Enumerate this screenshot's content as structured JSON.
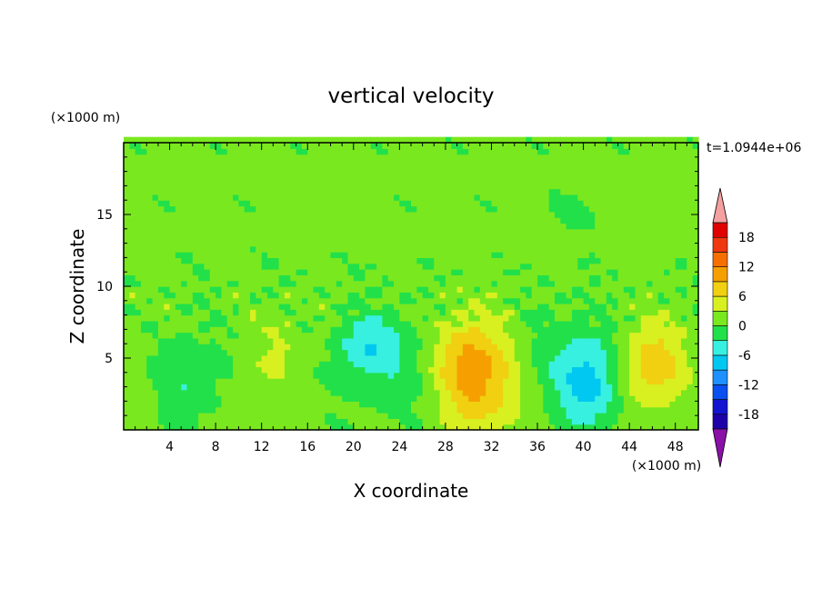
{
  "chart_data": {
    "type": "heatmap",
    "title": "vertical velocity",
    "time_label": "t=1.0944e+06",
    "xlabel": "X coordinate",
    "ylabel": "Z coordinate",
    "x_unit": "(×1000 m)",
    "y_unit": "(×1000 m)",
    "xlim": [
      0,
      50
    ],
    "ylim": [
      0,
      20
    ],
    "x_ticks": [
      4,
      8,
      12,
      16,
      20,
      24,
      28,
      32,
      36,
      40,
      44,
      48
    ],
    "y_ticks": [
      5,
      10,
      15
    ],
    "colorbar": {
      "tick_labels": [
        "18",
        "12",
        "6",
        "0",
        "-6",
        "-12",
        "-18"
      ],
      "tick_values": [
        18,
        12,
        6,
        0,
        -6,
        -12,
        -18
      ],
      "levels": [
        -21,
        -18,
        -15,
        -12,
        -9,
        -6,
        -3,
        0,
        3,
        6,
        9,
        12,
        15,
        18,
        21
      ],
      "colors": [
        "#7a1fa2",
        "#1f00a8",
        "#1414d0",
        "#0a50f0",
        "#1e90ff",
        "#00c8f0",
        "#38f0e0",
        "#22e04a",
        "#7ae81e",
        "#d8f020",
        "#f0d010",
        "#f5a000",
        "#f57000",
        "#f03810",
        "#e00000",
        "#f5a0a0"
      ],
      "over_color": "#f5a0a0",
      "under_color": "#8a10a8"
    },
    "features": [
      {
        "x": 13.5,
        "z": 5.5,
        "w": 2.5,
        "sx": 1.5,
        "sz": 1.8
      },
      {
        "x": 11.0,
        "z": 2.5,
        "w": 2.0,
        "sx": 1.0,
        "sz": 1.5
      },
      {
        "x": 5.5,
        "z": 3.5,
        "w": -3.5,
        "sx": 2.0,
        "sz": 2.0
      },
      {
        "x": 21.0,
        "z": 5.8,
        "w": -6.0,
        "sx": 2.3,
        "sz": 1.6
      },
      {
        "x": 31.0,
        "z": 3.5,
        "w": 9.0,
        "sx": 2.5,
        "sz": 2.8
      },
      {
        "x": 29.5,
        "z": 5.0,
        "w": 4.0,
        "sx": 1.8,
        "sz": 1.8
      },
      {
        "x": 40.5,
        "z": 3.5,
        "w": -8.0,
        "sx": 2.0,
        "sz": 2.3
      },
      {
        "x": 46.0,
        "z": 4.5,
        "w": 7.5,
        "sx": 2.0,
        "sz": 2.0
      },
      {
        "x": 25.0,
        "z": 4.0,
        "w": -1.8,
        "sx": 4.0,
        "sz": 2.5
      },
      {
        "x": 36.0,
        "z": 5.0,
        "w": -1.8,
        "sx": 3.0,
        "sz": 2.5
      },
      {
        "x": 18.0,
        "z": 6.0,
        "w": 1.5,
        "sx": 1.5,
        "sz": 1.5
      },
      {
        "x": 19.0,
        "z": 15.5,
        "w": 1.2,
        "sx": 1.5,
        "sz": 1.0
      },
      {
        "x": 44.5,
        "z": 15.5,
        "w": 1.5,
        "sx": 1.5,
        "sz": 1.5
      },
      {
        "x": 39.0,
        "z": 15.0,
        "w": -1.5,
        "sx": 1.5,
        "sz": 1.0
      },
      {
        "x": 1.5,
        "z": 2.5,
        "w": 1.0,
        "sx": 1.0,
        "sz": 2.0
      }
    ]
  }
}
